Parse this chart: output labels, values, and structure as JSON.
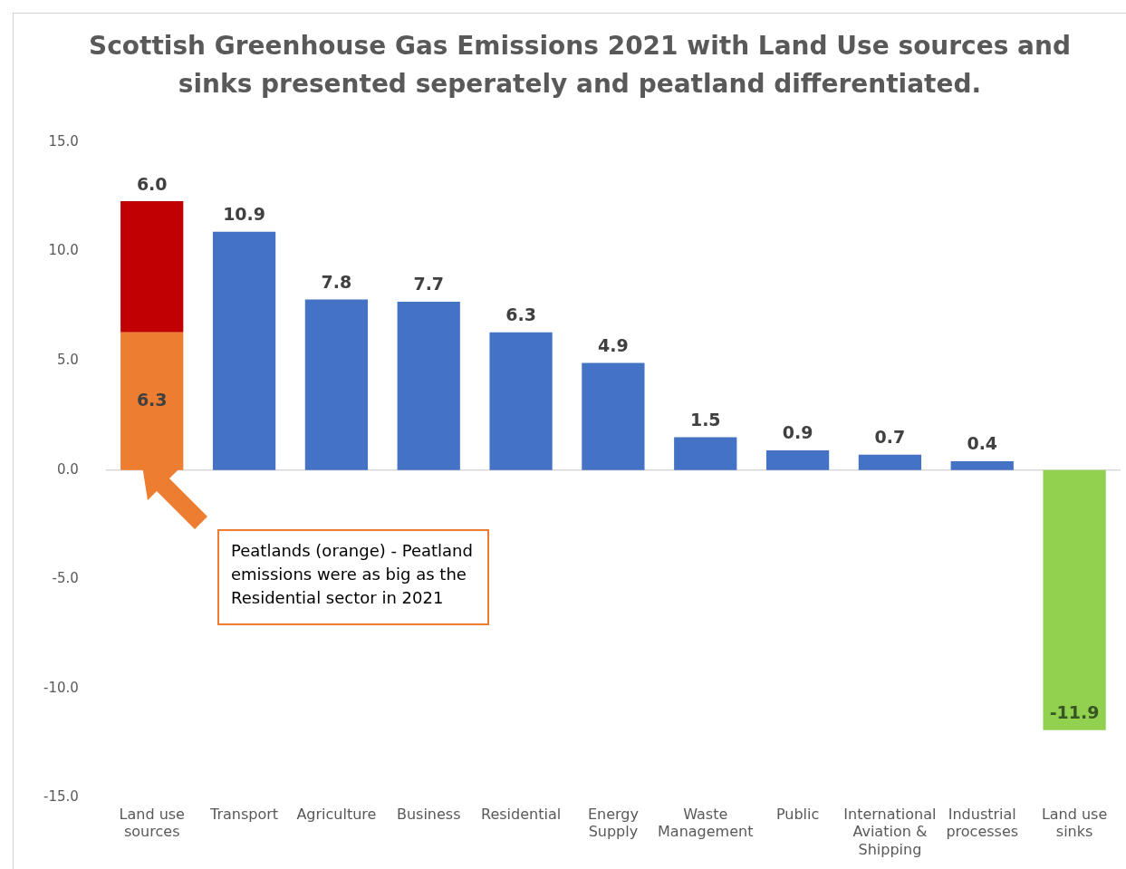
{
  "chart_data": {
    "type": "bar",
    "title": "Scottish Greenhouse Gas Emissions 2021 with Land Use sources and sinks presented seperately and peatland differentiated.",
    "categories": [
      "Land use sources",
      "Transport",
      "Agriculture",
      "Business",
      "Residential",
      "Energy Supply",
      "Waste Management",
      "Public",
      "International Aviation & Shipping",
      "Industrial processes",
      "Land use sinks"
    ],
    "stacked": true,
    "series": [
      {
        "colors": [
          "#ed7d31",
          "#4472c4",
          "#4472c4",
          "#4472c4",
          "#4472c4",
          "#4472c4",
          "#4472c4",
          "#4472c4",
          "#4472c4",
          "#4472c4",
          "#92d050"
        ],
        "values": [
          6.3,
          10.9,
          7.8,
          7.7,
          6.3,
          4.9,
          1.5,
          0.9,
          0.7,
          0.4,
          -11.9
        ],
        "value_labels": [
          "6.3",
          "10.9",
          "7.8",
          "7.7",
          "6.3",
          "4.9",
          "1.5",
          "0.9",
          "0.7",
          "0.4",
          "-11.9"
        ]
      },
      {
        "color": "#c00000",
        "values": [
          6.0,
          null,
          null,
          null,
          null,
          null,
          null,
          null,
          null,
          null,
          null
        ],
        "value_labels": [
          "6.0",
          null,
          null,
          null,
          null,
          null,
          null,
          null,
          null,
          null,
          null
        ]
      }
    ],
    "ylim": [
      -15,
      15
    ],
    "yticks": [
      {
        "value": -15,
        "label": "-15.0"
      },
      {
        "value": -10,
        "label": "-10.0"
      },
      {
        "value": -5,
        "label": "-5.0"
      },
      {
        "value": 0,
        "label": "0.0"
      },
      {
        "value": 5,
        "label": "5.0"
      },
      {
        "value": 10,
        "label": "10.0"
      },
      {
        "value": 15,
        "label": "15.0"
      }
    ],
    "grid": false,
    "legend": false,
    "ref_lines": [
      {
        "axis": "y",
        "value": 0,
        "color": "#d9d9d9"
      }
    ],
    "annotations": [
      "Peatlands (orange)  - Peatland emissions were as big as the Residential sector in 2021"
    ]
  }
}
